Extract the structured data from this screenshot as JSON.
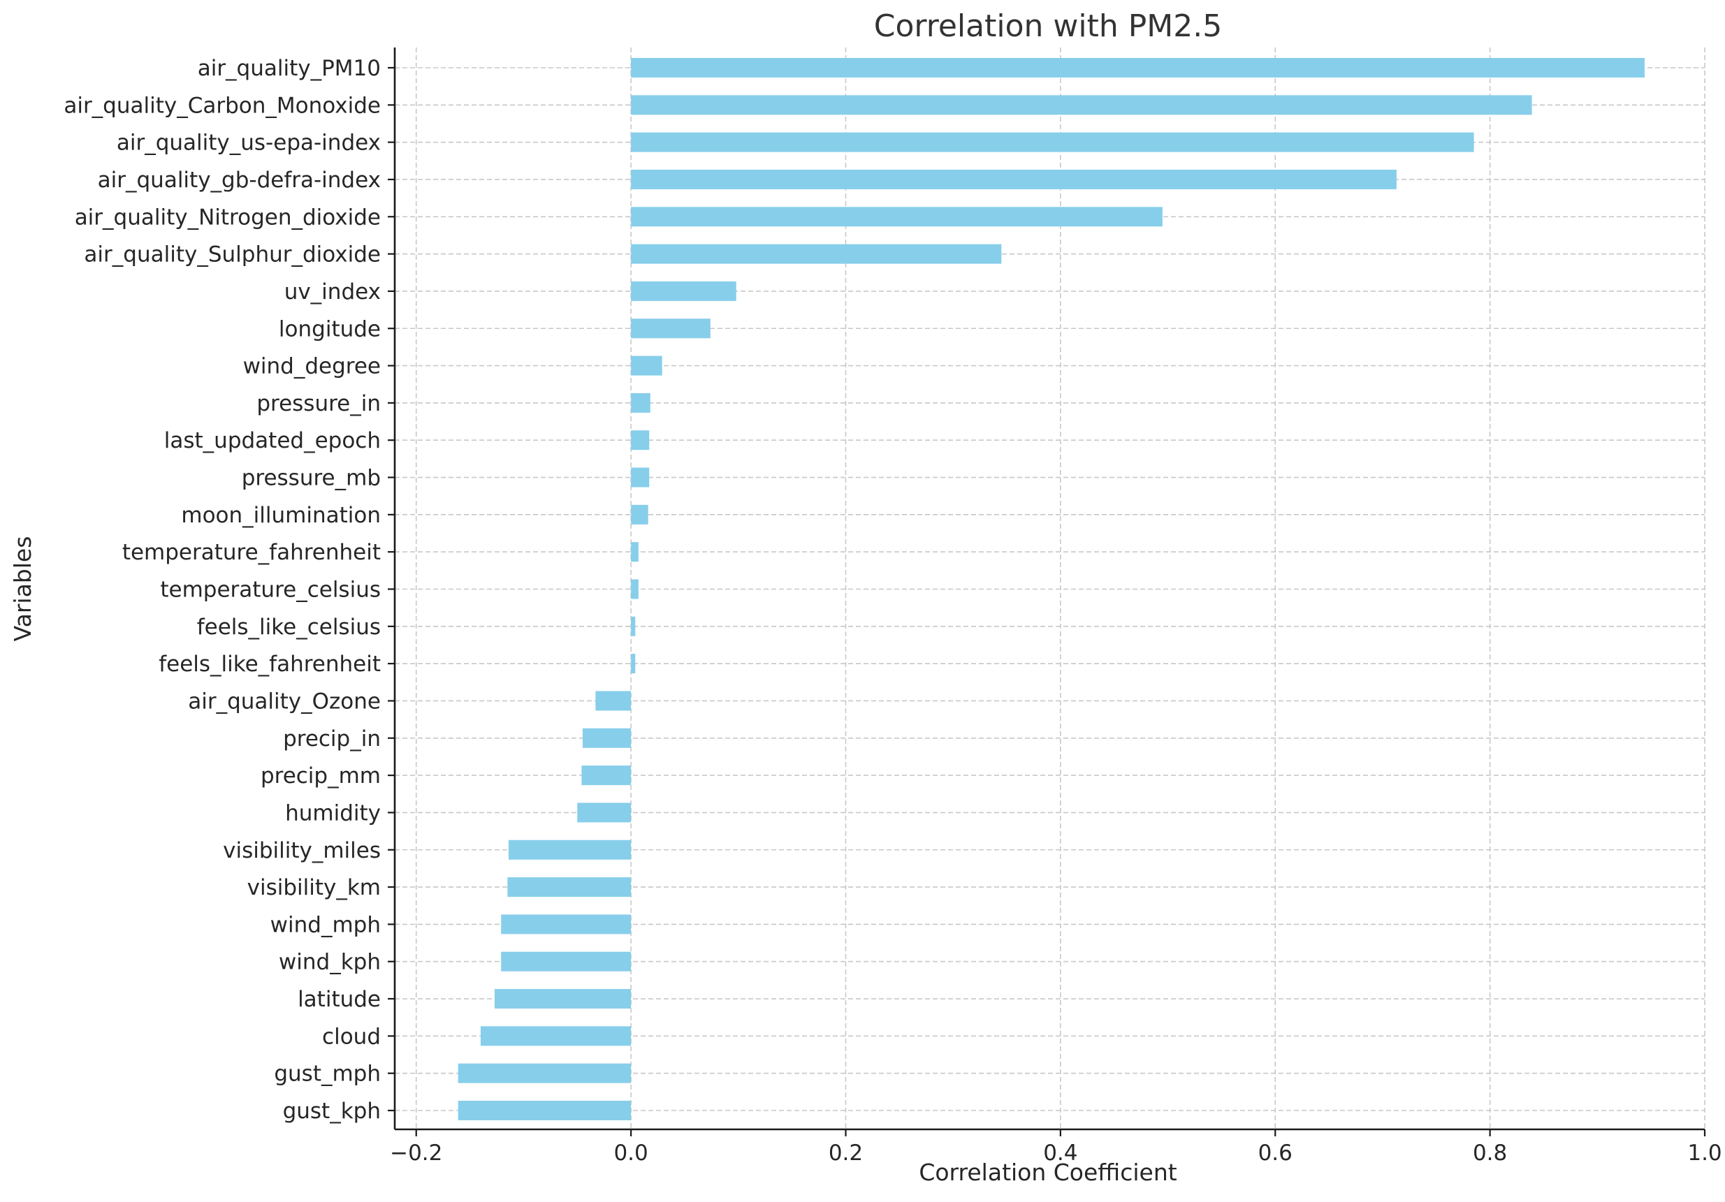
{
  "chart_data": {
    "type": "bar",
    "orientation": "horizontal",
    "title": "Correlation with PM2.5",
    "xlabel": "Correlation Coefficient",
    "ylabel": "Variables",
    "xlim": [
      -0.22,
      1.0
    ],
    "xticks": [
      -0.2,
      0.0,
      0.2,
      0.4,
      0.6,
      0.8,
      1.0
    ],
    "xtick_labels": [
      "−0.2",
      "0.0",
      "0.2",
      "0.4",
      "0.6",
      "0.8",
      "1.0"
    ],
    "grid": true,
    "bar_color": "#87ceeb",
    "categories": [
      "air_quality_PM10",
      "air_quality_Carbon_Monoxide",
      "air_quality_us-epa-index",
      "air_quality_gb-defra-index",
      "air_quality_Nitrogen_dioxide",
      "air_quality_Sulphur_dioxide",
      "uv_index",
      "longitude",
      "wind_degree",
      "pressure_in",
      "last_updated_epoch",
      "pressure_mb",
      "moon_illumination",
      "temperature_fahrenheit",
      "temperature_celsius",
      "feels_like_celsius",
      "feels_like_fahrenheit",
      "air_quality_Ozone",
      "precip_in",
      "precip_mm",
      "humidity",
      "visibility_miles",
      "visibility_km",
      "wind_mph",
      "wind_kph",
      "latitude",
      "cloud",
      "gust_mph",
      "gust_kph"
    ],
    "values": [
      0.944,
      0.839,
      0.785,
      0.713,
      0.495,
      0.345,
      0.098,
      0.074,
      0.029,
      0.018,
      0.017,
      0.017,
      0.016,
      0.007,
      0.007,
      0.004,
      0.004,
      -0.033,
      -0.045,
      -0.046,
      -0.05,
      -0.114,
      -0.115,
      -0.121,
      -0.121,
      -0.127,
      -0.14,
      -0.161,
      -0.161
    ]
  }
}
